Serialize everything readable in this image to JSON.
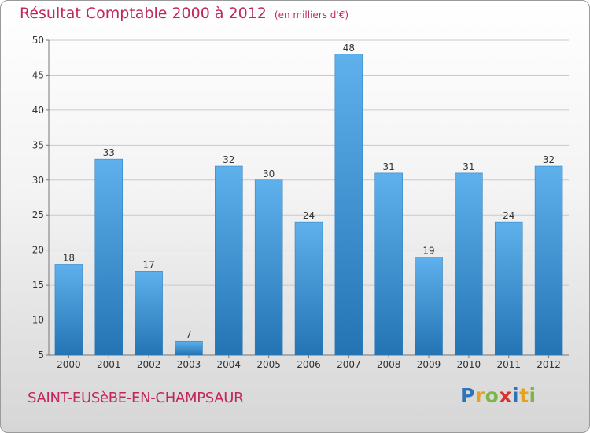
{
  "title": {
    "main": "Résultat Comptable 2000 à 2012",
    "unit": "(en milliers d'€)"
  },
  "place": "SAINT-EUSèBE-EN-CHAMPSAUR",
  "logo": {
    "letters": [
      "P",
      "r",
      "o",
      "x",
      "i",
      "t",
      "i"
    ],
    "colors": [
      "#2f74b5",
      "#e8a21c",
      "#7ab648",
      "#d9312b",
      "#2f74b5",
      "#e8a21c",
      "#7ab648"
    ]
  },
  "colors": {
    "bar_top": "#5eb1ec",
    "bar_bottom": "#2474b4",
    "title": "#c0275f"
  },
  "chart_data": {
    "type": "bar",
    "title": "Résultat Comptable 2000 à 2012",
    "ylabel": "en milliers d'€",
    "xlabel": "",
    "categories": [
      "2000",
      "2001",
      "2002",
      "2003",
      "2004",
      "2005",
      "2006",
      "2007",
      "2008",
      "2009",
      "2010",
      "2011",
      "2012"
    ],
    "values": [
      18,
      33,
      17,
      7,
      32,
      30,
      24,
      48,
      31,
      19,
      31,
      24,
      32
    ],
    "ylim": [
      5,
      50
    ],
    "yticks": [
      5,
      10,
      15,
      20,
      25,
      30,
      35,
      40,
      45,
      50
    ],
    "grid": true
  }
}
